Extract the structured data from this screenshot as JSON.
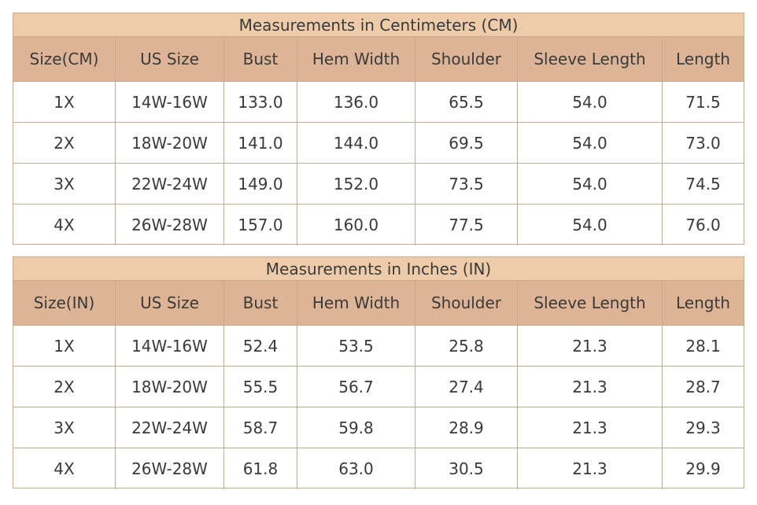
{
  "tables": [
    {
      "title": "Measurements in Centimeters (CM)",
      "headers": [
        "Size(CM)",
        "US Size",
        "Bust",
        "Hem Width",
        "Shoulder",
        "Sleeve Length",
        "Length"
      ],
      "rows": [
        [
          "1X",
          "14W-16W",
          "133.0",
          "136.0",
          "65.5",
          "54.0",
          "71.5"
        ],
        [
          "2X",
          "18W-20W",
          "141.0",
          "144.0",
          "69.5",
          "54.0",
          "73.0"
        ],
        [
          "3X",
          "22W-24W",
          "149.0",
          "152.0",
          "73.5",
          "54.0",
          "74.5"
        ],
        [
          "4X",
          "26W-28W",
          "157.0",
          "160.0",
          "77.5",
          "54.0",
          "76.0"
        ]
      ]
    },
    {
      "title": "Measurements in Inches (IN)",
      "headers": [
        "Size(IN)",
        "US Size",
        "Bust",
        "Hem Width",
        "Shoulder",
        "Sleeve Length",
        "Length"
      ],
      "rows": [
        [
          "1X",
          "14W-16W",
          "52.4",
          "53.5",
          "25.8",
          "21.3",
          "28.1"
        ],
        [
          "2X",
          "18W-20W",
          "55.5",
          "56.7",
          "27.4",
          "21.3",
          "28.7"
        ],
        [
          "3X",
          "22W-24W",
          "58.7",
          "59.8",
          "28.9",
          "21.3",
          "29.3"
        ],
        [
          "4X",
          "26W-28W",
          "61.8",
          "63.0",
          "30.5",
          "21.3",
          "29.9"
        ]
      ]
    }
  ]
}
